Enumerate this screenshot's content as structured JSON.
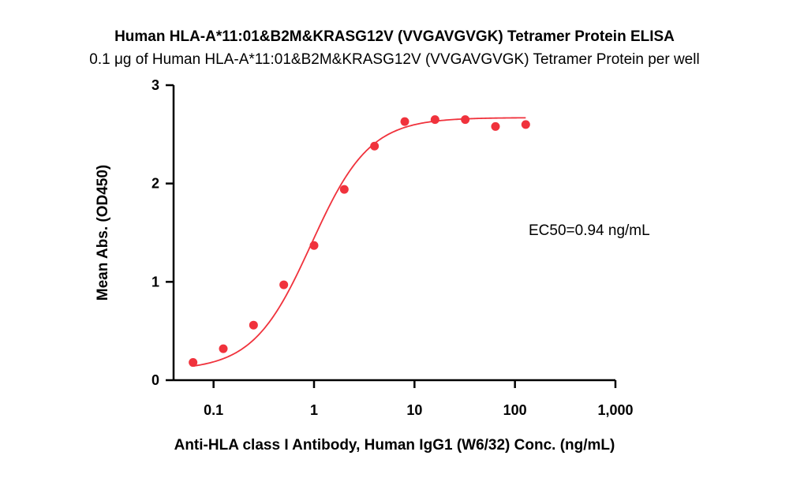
{
  "chart_data": {
    "type": "scatter",
    "title": "Human HLA-A*11:01&B2M&KRASG12V (VVGAVGVGK) Tetramer Protein ELISA",
    "subtitle": "0.1 μg of Human HLA-A*11:01&B2M&KRASG12V (VVGAVGVGK) Tetramer Protein per well",
    "xlabel": "Anti-HLA class I Antibody, Human IgG1 (W6/32) Conc. (ng/mL)",
    "ylabel": "Mean Abs. (OD450)",
    "x_scale": "log",
    "xlim": [
      0.04,
      1000
    ],
    "ylim": [
      0,
      3
    ],
    "x_ticks": [
      {
        "value": 0.1,
        "label": "0.1"
      },
      {
        "value": 1,
        "label": "1"
      },
      {
        "value": 10,
        "label": "10"
      },
      {
        "value": 100,
        "label": "100"
      },
      {
        "value": 1000,
        "label": "1,000"
      }
    ],
    "y_ticks": [
      {
        "value": 0,
        "label": "0"
      },
      {
        "value": 1,
        "label": "1"
      },
      {
        "value": 2,
        "label": "2"
      },
      {
        "value": 3,
        "label": "3"
      }
    ],
    "grid": false,
    "annotation": "EC50=0.94 ng/mL",
    "color": "#f0323c",
    "points": [
      {
        "x": 0.0625,
        "y": 0.18
      },
      {
        "x": 0.125,
        "y": 0.32
      },
      {
        "x": 0.25,
        "y": 0.56
      },
      {
        "x": 0.5,
        "y": 0.97
      },
      {
        "x": 1,
        "y": 1.37
      },
      {
        "x": 2,
        "y": 1.94
      },
      {
        "x": 4,
        "y": 2.38
      },
      {
        "x": 8,
        "y": 2.63
      },
      {
        "x": 16,
        "y": 2.65
      },
      {
        "x": 32,
        "y": 2.65
      },
      {
        "x": 64,
        "y": 2.58
      },
      {
        "x": 128,
        "y": 2.6
      }
    ],
    "fit": {
      "model": "4PL",
      "bottom": 0.1,
      "top": 2.67,
      "ec50": 0.94,
      "hill": 1.5,
      "x_range": [
        0.0625,
        128
      ]
    }
  }
}
